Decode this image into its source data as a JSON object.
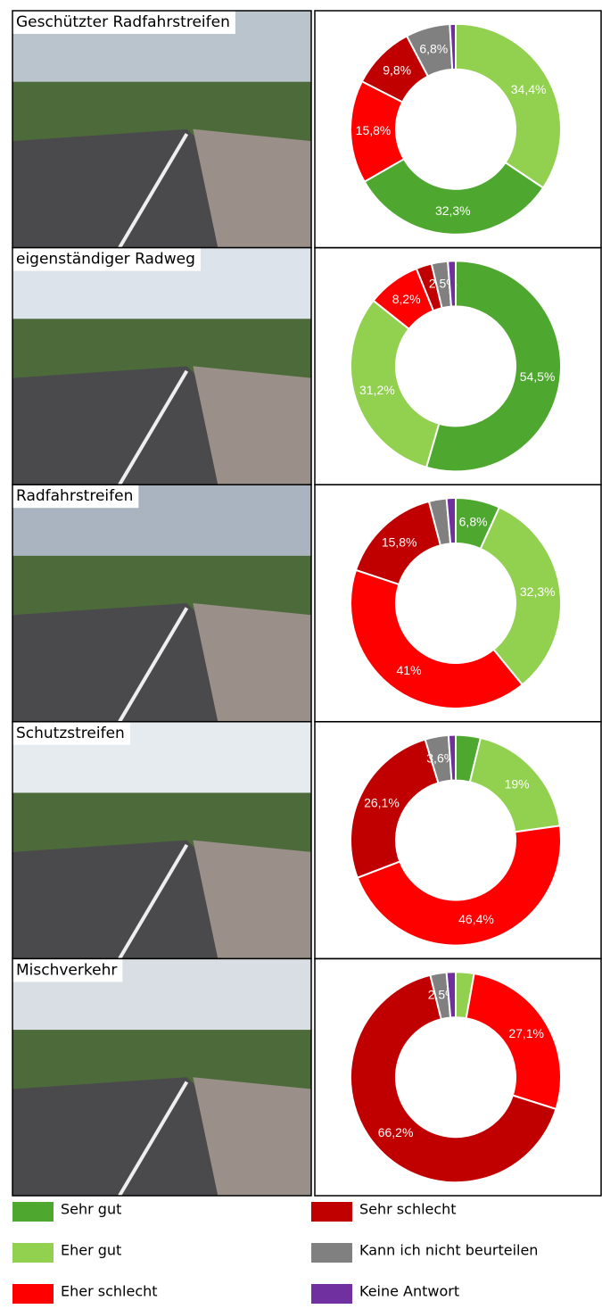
{
  "chart_data": [
    {
      "type": "pie",
      "title": "Geschützter Radfahrstreifen",
      "categories": [
        "Eher gut",
        "Sehr gut",
        "Eher schlecht",
        "Sehr schlecht",
        "Kann ich nicht beurteilen",
        "Keine Antwort"
      ],
      "values": [
        34.4,
        32.3,
        15.8,
        9.8,
        6.8,
        0.9
      ],
      "value_labels": [
        "34,4%",
        "32,3%",
        "15,8%",
        "9,8%",
        "6,8%",
        null
      ],
      "colors": [
        "#92d050",
        "#4ea72e",
        "#ff0000",
        "#c00000",
        "#808080",
        "#7030a0"
      ]
    },
    {
      "type": "pie",
      "title": "eigenständiger Radweg",
      "categories": [
        "Sehr gut",
        "Eher gut",
        "Eher schlecht",
        "Sehr schlecht",
        "Kann ich nicht beurteilen",
        "Keine Antwort"
      ],
      "values": [
        54.5,
        31.2,
        8.2,
        2.4,
        2.5,
        1.2
      ],
      "value_labels": [
        "54,5%",
        "31,2%",
        "8,2%",
        null,
        "2,5%",
        null
      ],
      "colors": [
        "#4ea72e",
        "#92d050",
        "#ff0000",
        "#c00000",
        "#808080",
        "#7030a0"
      ]
    },
    {
      "type": "pie",
      "title": "Radfahrstreifen",
      "categories": [
        "Sehr gut",
        "Eher gut",
        "Eher schlecht",
        "Sehr schlecht",
        "Kann ich nicht beurteilen",
        "Keine Antwort"
      ],
      "values": [
        6.8,
        32.3,
        41,
        15.8,
        2.7,
        1.4
      ],
      "value_labels": [
        "6,8%",
        "32,3%",
        "41%",
        "15,8%",
        null,
        null
      ],
      "colors": [
        "#4ea72e",
        "#92d050",
        "#ff0000",
        "#c00000",
        "#808080",
        "#7030a0"
      ]
    },
    {
      "type": "pie",
      "title": "Schutzstreifen",
      "categories": [
        "Sehr gut",
        "Eher gut",
        "Eher schlecht",
        "Sehr schlecht",
        "Kann ich nicht beurteilen",
        "Keine Antwort"
      ],
      "values": [
        3.8,
        19,
        46.4,
        26.1,
        3.6,
        1.1
      ],
      "value_labels": [
        null,
        "19%",
        "46,4%",
        "26,1%",
        "3,6%",
        null
      ],
      "colors": [
        "#4ea72e",
        "#92d050",
        "#ff0000",
        "#c00000",
        "#808080",
        "#7030a0"
      ]
    },
    {
      "type": "pie",
      "title": "Mischverkehr",
      "categories": [
        "Eher gut",
        "Eher schlecht",
        "Sehr schlecht",
        "Kann ich nicht beurteilen",
        "Keine Antwort"
      ],
      "values": [
        2.8,
        27.1,
        66.2,
        2.5,
        1.4
      ],
      "value_labels": [
        null,
        "27,1%",
        "66,2%",
        "2,5%",
        null
      ],
      "colors": [
        "#92d050",
        "#ff0000",
        "#c00000",
        "#808080",
        "#7030a0"
      ]
    }
  ],
  "legend": {
    "items": [
      {
        "name": "Sehr gut",
        "color": "#4ea72e"
      },
      {
        "name": "Eher gut",
        "color": "#92d050"
      },
      {
        "name": "Eher schlecht",
        "color": "#ff0000"
      },
      {
        "name": "Sehr schlecht",
        "color": "#c00000"
      },
      {
        "name": "Kann ich nicht beurteilen",
        "color": "#808080"
      },
      {
        "name": "Keine Antwort",
        "color": "#7030a0"
      }
    ]
  }
}
